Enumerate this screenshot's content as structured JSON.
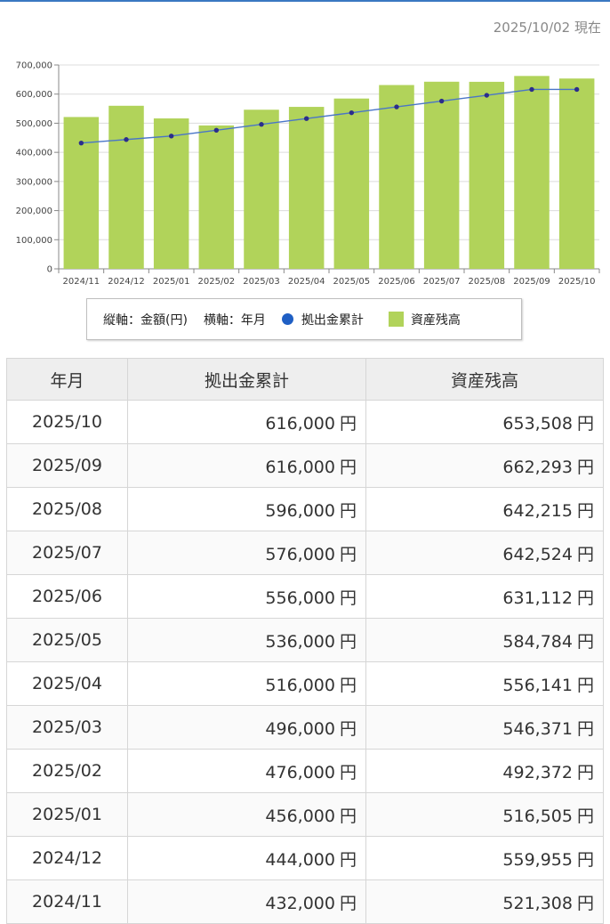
{
  "as_of": "2025/10/02 現在",
  "legend": {
    "axis_note": "縦軸：金額(円)",
    "h_axis_note": "横軸：年月",
    "line_label": "拠出金累計",
    "bar_label": "資産残高"
  },
  "colors": {
    "bar": "#b1d35a",
    "line": "#4a76c7",
    "point": "#2b2d8c",
    "accent": "#3a78c2"
  },
  "chart_data": {
    "type": "bar",
    "categories": [
      "2024/11",
      "2024/12",
      "2025/01",
      "2025/02",
      "2025/03",
      "2025/04",
      "2025/05",
      "2025/06",
      "2025/07",
      "2025/08",
      "2025/09",
      "2025/10"
    ],
    "series": [
      {
        "name": "資産残高",
        "type": "bar",
        "values": [
          521308,
          559955,
          516505,
          492372,
          546371,
          556141,
          584784,
          631112,
          642524,
          642215,
          662293,
          653508
        ]
      },
      {
        "name": "拠出金累計",
        "type": "line",
        "values": [
          432000,
          444000,
          456000,
          476000,
          496000,
          516000,
          536000,
          556000,
          576000,
          596000,
          616000,
          616000
        ]
      }
    ],
    "ylim": [
      0,
      700000
    ],
    "yticks": [
      "0",
      "100,000",
      "200,000",
      "300,000",
      "400,000",
      "500,000",
      "600,000",
      "700,000"
    ],
    "grid": true,
    "legend_position": "bottom"
  },
  "table": {
    "headers": [
      "年月",
      "拠出金累計",
      "資産残高"
    ],
    "unit": "円",
    "rows": [
      [
        "2025/10",
        "616,000",
        "653,508"
      ],
      [
        "2025/09",
        "616,000",
        "662,293"
      ],
      [
        "2025/08",
        "596,000",
        "642,215"
      ],
      [
        "2025/07",
        "576,000",
        "642,524"
      ],
      [
        "2025/06",
        "556,000",
        "631,112"
      ],
      [
        "2025/05",
        "536,000",
        "584,784"
      ],
      [
        "2025/04",
        "516,000",
        "556,141"
      ],
      [
        "2025/03",
        "496,000",
        "546,371"
      ],
      [
        "2025/02",
        "476,000",
        "492,372"
      ],
      [
        "2025/01",
        "456,000",
        "516,505"
      ],
      [
        "2024/12",
        "444,000",
        "559,955"
      ],
      [
        "2024/11",
        "432,000",
        "521,308"
      ]
    ]
  }
}
